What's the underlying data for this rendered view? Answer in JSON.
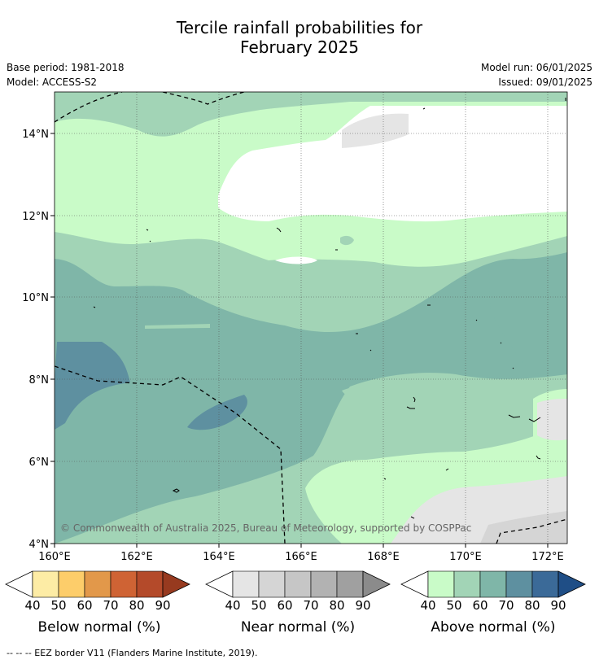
{
  "title_line1": "Tercile rainfall probabilities for",
  "title_line2": "February 2025",
  "base_period": "Base period: 1981-2018",
  "model": "Model: ACCESS-S2",
  "model_run": "Model run: 06/01/2025",
  "issued": "Issued: 09/01/2025",
  "copyright": "© Commonwealth of Australia 2025, Bureau of Meteorology, supported by COSPPac",
  "lat_labels": [
    "14°N",
    "12°N",
    "10°N",
    "8°N",
    "6°N",
    "4°N"
  ],
  "lon_labels": [
    "160°E",
    "162°E",
    "164°E",
    "166°E",
    "168°E",
    "170°E",
    "172°E"
  ],
  "colorbars": [
    {
      "name": "below",
      "label": "Below normal (%)",
      "ticks": [
        "40",
        "50",
        "60",
        "70",
        "80",
        "90"
      ],
      "colors": [
        "#fdeca5",
        "#fdcd6a",
        "#e2984a",
        "#cf6334",
        "#b44a2a",
        "#973a1f"
      ]
    },
    {
      "name": "near",
      "label": "Near normal (%)",
      "ticks": [
        "40",
        "50",
        "60",
        "70",
        "80",
        "90"
      ],
      "colors": [
        "#e5e5e5",
        "#d5d5d5",
        "#c6c6c6",
        "#b2b2b2",
        "#a0a0a0",
        "#8b8b8b"
      ]
    },
    {
      "name": "above",
      "label": "Above normal (%)",
      "ticks": [
        "40",
        "50",
        "60",
        "70",
        "80",
        "90"
      ],
      "colors": [
        "#c9fbc8",
        "#a2d4b6",
        "#7fb6a8",
        "#5e90a0",
        "#3b6a98",
        "#1f4e86"
      ]
    }
  ],
  "footer": "-- -- -- EEZ border V11 (Flanders Marine Institute, 2019)."
}
